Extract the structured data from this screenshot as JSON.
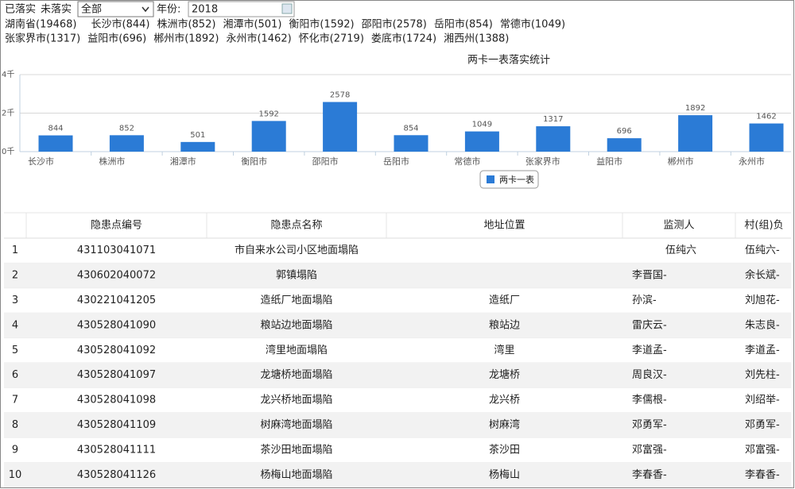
{
  "filters": {
    "done": "已落实",
    "undone": "未落实",
    "select": "全部",
    "year_label": "年份:",
    "year": "2018"
  },
  "regions": {
    "lines": [
      [
        "湖南省(19468)",
        "长沙市(844)",
        "株洲市(852)",
        "湘潭市(501)",
        "衡阳市(1592)",
        "邵阳市(2578)",
        "岳阳市(854)",
        "常德市(1049)"
      ],
      [
        "张家界市(1317)",
        "益阳市(696)",
        "郴州市(1892)",
        "永州市(1462)",
        "怀化市(2719)",
        "娄底市(1724)",
        "湘西州(1388)"
      ]
    ]
  },
  "chart": {
    "type": "bar",
    "title": "两卡一表落实统计",
    "categories": [
      "长沙市",
      "株洲市",
      "湘潭市",
      "衡阳市",
      "邵阳市",
      "岳阳市",
      "常德市",
      "张家界市",
      "益阳市",
      "郴州市",
      "永州市"
    ],
    "series": [
      {
        "name": "两卡一表",
        "color": "#2b7bd6",
        "values": [
          844,
          852,
          501,
          1592,
          2578,
          854,
          1049,
          1317,
          696,
          1892,
          1462
        ]
      }
    ],
    "ylim": [
      0,
      4000
    ],
    "yticks": [
      {
        "value": 0,
        "label": "0千"
      },
      {
        "value": 2000,
        "label": "2千"
      },
      {
        "value": 4000,
        "label": "4千"
      }
    ]
  },
  "table": {
    "headers": [
      "隐患点编号",
      "隐患点名称",
      "地址位置",
      "监测人",
      "村(组)负"
    ],
    "rows": [
      [
        1,
        "431103041071",
        "市自来水公司小区地面塌陷",
        null,
        "伍纯六",
        "伍纯六-"
      ],
      [
        2,
        "430602040072",
        "郭镇塌陷",
        null,
        "李晋国-",
        "余长斌-"
      ],
      [
        3,
        "430221041205",
        "造纸厂地面塌陷",
        "造纸厂",
        "孙滨-",
        "刘旭花-"
      ],
      [
        4,
        "430528041090",
        "粮站边地面塌陷",
        "粮站边",
        "雷庆云-",
        "朱志良-"
      ],
      [
        5,
        "430528041092",
        "湾里地面塌陷",
        "湾里",
        "李道孟-",
        "李道孟-"
      ],
      [
        6,
        "430528041097",
        "龙塘桥地面塌陷",
        "龙塘桥",
        "周良汉-",
        "刘先柱-"
      ],
      [
        7,
        "430528041098",
        "龙兴桥地面塌陷",
        "龙兴桥",
        "李儒根-",
        "刘绍举-"
      ],
      [
        8,
        "430528041109",
        "树麻湾地面塌陷",
        "树麻湾",
        "邓勇军-",
        "邓勇军-"
      ],
      [
        9,
        "430528041111",
        "茶沙田地面塌陷",
        "茶沙田",
        "邓富强-",
        "邓富强-"
      ],
      [
        10,
        "430528041126",
        "杨梅山地面塌陷",
        "杨梅山",
        "李春香-",
        "李春香-"
      ]
    ]
  }
}
